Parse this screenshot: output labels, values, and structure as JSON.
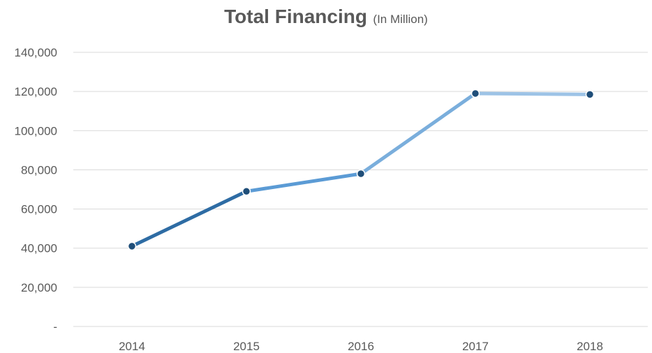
{
  "chart_data": {
    "type": "line",
    "title": "Total Financing",
    "subtitle": "(In Million)",
    "xlabel": "",
    "ylabel": "",
    "categories": [
      "2014",
      "2015",
      "2016",
      "2017",
      "2018"
    ],
    "series": [
      {
        "values": [
          41000,
          69000,
          78000,
          119000,
          118500
        ]
      }
    ],
    "ylim": [
      0,
      140000
    ],
    "yticks": [
      0,
      20000,
      40000,
      60000,
      80000,
      100000,
      120000,
      140000
    ],
    "ytick_labels": [
      "-",
      "20,000",
      "40,000",
      "60,000",
      "80,000",
      "100,000",
      "120,000",
      "140,000"
    ],
    "grid": true,
    "legend": "none",
    "colors": {
      "segments": [
        "#2e6ca4",
        "#5b9bd5",
        "#7aaedc",
        "#9dc3e6"
      ],
      "markers": "#1f4e79",
      "grid": "#d9d9d9",
      "text": "#595959"
    }
  }
}
